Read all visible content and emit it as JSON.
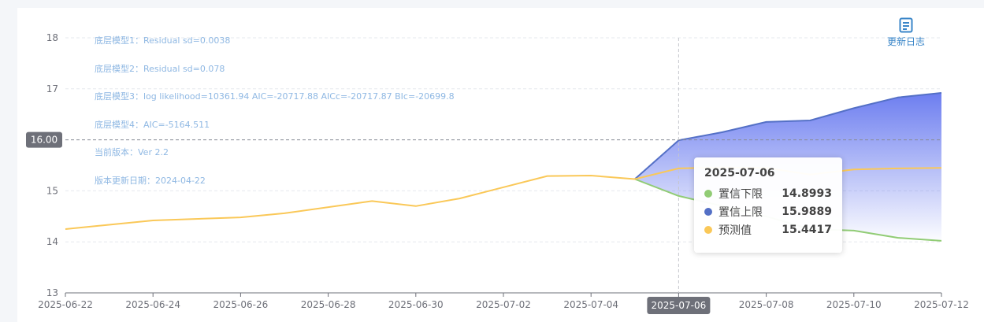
{
  "notes": [
    "底层模型1：Residual sd=0.0038",
    "底层模型2：Residual sd=0.078",
    "底层模型3：log likelihood=10361.94 AIC=-20717.88 AICc=-20717.87 BIc=-20699.8",
    "底层模型4：AIC=-5164.511",
    "当前版本：Ver 2.2",
    "版本更新日期：2024-04-22"
  ],
  "changelog_label": "更新日志",
  "crosshair": {
    "y_label": "16.00",
    "x_label": "2025-07-06"
  },
  "tooltip": {
    "title": "2025-07-06",
    "rows": [
      {
        "name": "置信下限",
        "value": "14.8993",
        "color": "#91cc75"
      },
      {
        "name": "置信上限",
        "value": "15.9889",
        "color": "#5470c6"
      },
      {
        "name": "预测值",
        "value": "15.4417",
        "color": "#fac858"
      }
    ]
  },
  "chart_data": {
    "type": "area",
    "title": "",
    "xlabel": "",
    "ylabel": "",
    "ylim": [
      13,
      18
    ],
    "yticks": [
      13,
      14,
      15,
      16,
      17,
      18
    ],
    "xlim": [
      "2025-06-22",
      "2025-07-12"
    ],
    "xticks": [
      "2025-06-22",
      "2025-06-24",
      "2025-06-26",
      "2025-06-28",
      "2025-06-30",
      "2025-07-02",
      "2025-07-04",
      "2025-07-06",
      "2025-07-08",
      "2025-07-10",
      "2025-07-12"
    ],
    "grid": true,
    "colors": {
      "upper": "#5470c6",
      "lower": "#91cc75",
      "pred": "#fac858"
    },
    "series": [
      {
        "name": "预测值",
        "x": [
          "2025-06-22",
          "2025-06-24",
          "2025-06-26",
          "2025-06-27",
          "2025-06-29",
          "2025-06-30",
          "2025-07-01",
          "2025-07-03",
          "2025-07-04",
          "2025-07-05",
          "2025-07-06",
          "2025-07-07",
          "2025-07-08",
          "2025-07-09",
          "2025-07-10",
          "2025-07-11",
          "2025-07-12"
        ],
        "values": [
          14.25,
          14.42,
          14.48,
          14.56,
          14.8,
          14.7,
          14.85,
          15.29,
          15.3,
          15.23,
          15.44,
          15.46,
          15.45,
          15.32,
          15.42,
          15.44,
          15.45
        ]
      },
      {
        "name": "置信上限",
        "x": [
          "2025-07-05",
          "2025-07-06",
          "2025-07-07",
          "2025-07-08",
          "2025-07-09",
          "2025-07-10",
          "2025-07-11",
          "2025-07-12"
        ],
        "values": [
          15.23,
          15.99,
          16.15,
          16.35,
          16.38,
          16.62,
          16.83,
          16.92
        ]
      },
      {
        "name": "置信下限",
        "x": [
          "2025-07-05",
          "2025-07-06",
          "2025-07-07",
          "2025-07-08",
          "2025-07-09",
          "2025-07-10",
          "2025-07-11",
          "2025-07-12"
        ],
        "values": [
          15.23,
          14.9,
          14.7,
          14.5,
          14.25,
          14.22,
          14.08,
          14.02
        ]
      }
    ]
  }
}
